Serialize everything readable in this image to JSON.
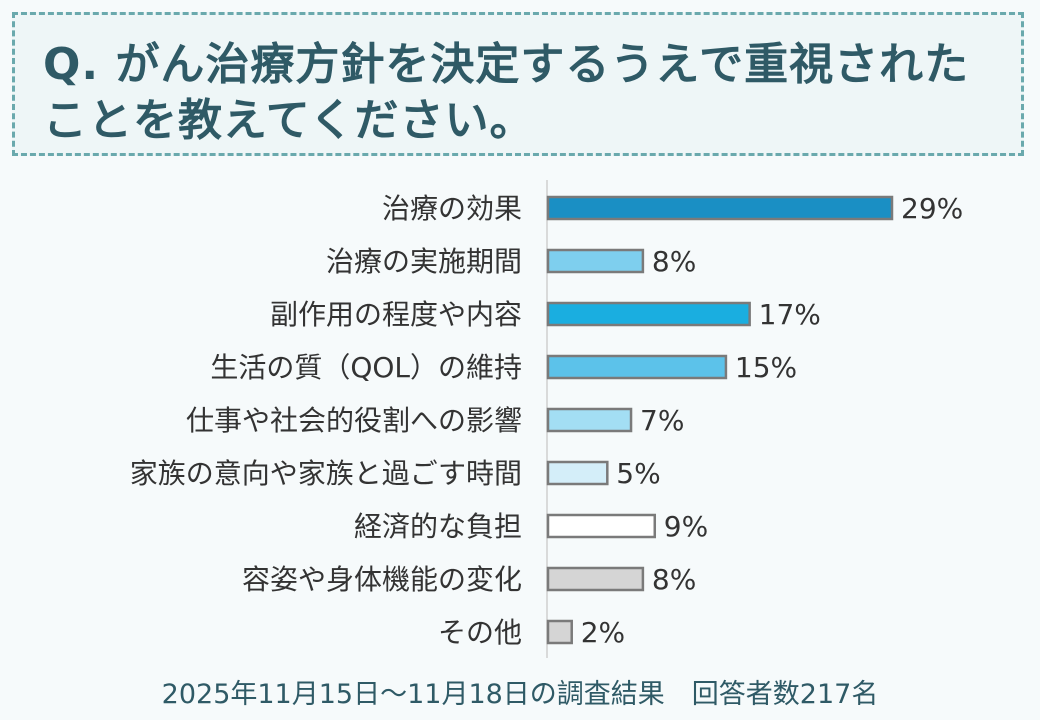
{
  "title": "Q. がん治療方針を決定するうえで重視されたことを教えてください。",
  "footer": "2025年11月15日～11月18日の調査結果　回答者数217名",
  "colors": {
    "title_text": "#2f5a66",
    "title_border": "#6aa9ad",
    "bar_border": "#7a7a7a",
    "label_text": "#333333"
  },
  "chart_data": {
    "type": "bar",
    "orientation": "horizontal",
    "title": "Q. がん治療方針を決定するうえで重視されたことを教えてください。",
    "xlabel": "",
    "ylabel": "",
    "unit": "%",
    "xlim": [
      0,
      29
    ],
    "grid": false,
    "categories": [
      "治療の効果",
      "治療の実施期間",
      "副作用の程度や内容",
      "生活の質（QOL）の維持",
      "仕事や社会的役割への影響",
      "家族の意向や家族と過ごす時間",
      "経済的な負担",
      "容姿や身体機能の変化",
      "その他"
    ],
    "values": [
      29,
      8,
      17,
      15,
      7,
      5,
      9,
      8,
      2
    ],
    "labels": [
      "29%",
      "8%",
      "17%",
      "15%",
      "7%",
      "5%",
      "9%",
      "8%",
      "2%"
    ],
    "bar_colors": [
      "#1a8fc4",
      "#7ecfee",
      "#1aaee0",
      "#5cc2ea",
      "#a3def4",
      "#d4eef9",
      "#ffffff",
      "#d5d5d5",
      "#d5d5d5"
    ]
  }
}
